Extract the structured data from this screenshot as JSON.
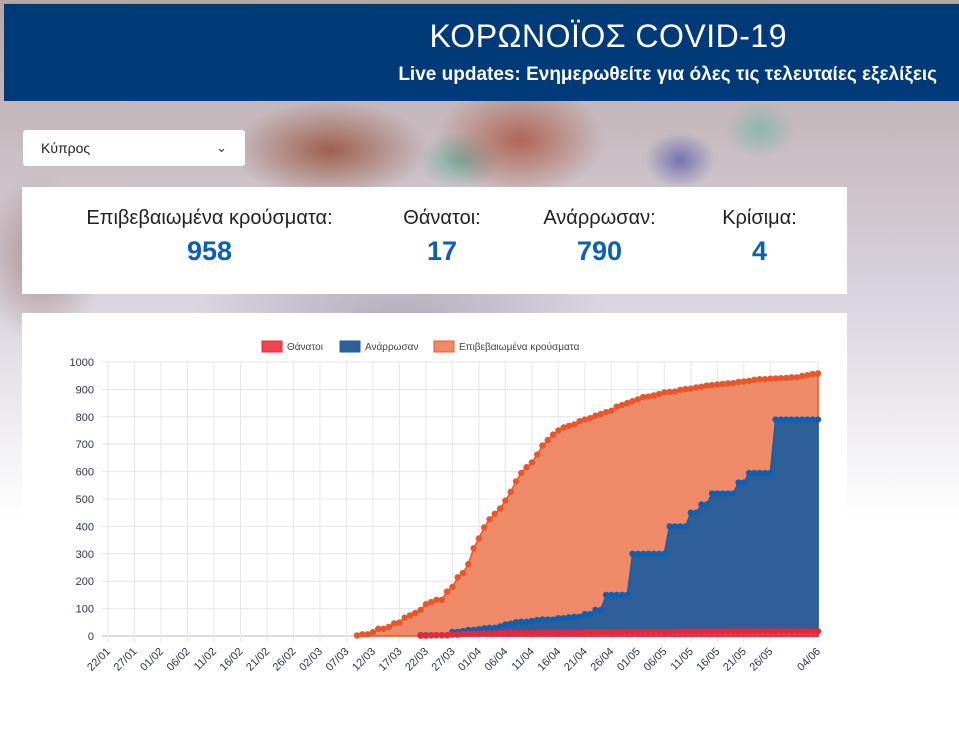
{
  "header": {
    "title": "ΚΟΡΩΝΟΪΟΣ COVID-19",
    "subtitle": "Live updates: Ενημερωθείτε για όλες τις τελευταίες εξελίξεις"
  },
  "country_select": {
    "value": "Κύπρος"
  },
  "stats": [
    {
      "label": "Επιβεβαιωμένα κρούσματα:",
      "value": "958"
    },
    {
      "label": "Θάνατοι:",
      "value": "17"
    },
    {
      "label": "Ανάρρωσαν:",
      "value": "790"
    },
    {
      "label": "Κρίσιμα:",
      "value": "4"
    }
  ],
  "chart_data": {
    "type": "area",
    "x_start": "22/01",
    "x_end": "04/06",
    "num_days": 135,
    "x_tick_labels": [
      "22/01",
      "27/01",
      "01/02",
      "06/02",
      "11/02",
      "16/02",
      "21/02",
      "26/02",
      "02/03",
      "07/03",
      "12/03",
      "17/03",
      "22/03",
      "27/03",
      "01/04",
      "06/04",
      "11/04",
      "16/04",
      "21/04",
      "26/04",
      "01/05",
      "06/05",
      "11/05",
      "16/05",
      "21/05",
      "26/05",
      "04/06"
    ],
    "x_tick_days": [
      0,
      5,
      10,
      15,
      20,
      25,
      30,
      35,
      40,
      45,
      50,
      55,
      60,
      65,
      70,
      75,
      80,
      85,
      90,
      95,
      100,
      105,
      110,
      115,
      120,
      125,
      134
    ],
    "y_ticks": [
      0,
      100,
      200,
      300,
      400,
      500,
      600,
      700,
      800,
      900,
      1000
    ],
    "ylim": [
      0,
      1000
    ],
    "grid": true,
    "legend_position": "top",
    "series": [
      {
        "name": "Θάνατοι",
        "color": "#e8283a",
        "fill": "#ef4452",
        "start_day": 59,
        "values": [
          1,
          1,
          2,
          3,
          3,
          3,
          5,
          5,
          7,
          9,
          9,
          9,
          10,
          10,
          10,
          11,
          11,
          11,
          11,
          11,
          11,
          11,
          11,
          12,
          12,
          12,
          12,
          12,
          12,
          12,
          12,
          14,
          14,
          14,
          14,
          14,
          14,
          14,
          14,
          15,
          15,
          15,
          15,
          15,
          15,
          15,
          15,
          15,
          15,
          16,
          16,
          16,
          16,
          16,
          16,
          16,
          16,
          16,
          17,
          17,
          17,
          17,
          17,
          17,
          17,
          17,
          17,
          17,
          17,
          17,
          17,
          17,
          17,
          17,
          17,
          17
        ]
      },
      {
        "name": "Ανάρρωσαν",
        "color": "#1060b0",
        "fill": "#2f5f99",
        "start_day": 59,
        "values": [
          3,
          3,
          3,
          3,
          3,
          3,
          15,
          15,
          18,
          22,
          22,
          25,
          28,
          30,
          30,
          35,
          42,
          45,
          50,
          52,
          52,
          55,
          58,
          60,
          60,
          60,
          65,
          65,
          68,
          70,
          70,
          80,
          80,
          95,
          95,
          150,
          150,
          150,
          150,
          150,
          300,
          300,
          300,
          300,
          300,
          300,
          300,
          400,
          400,
          400,
          400,
          450,
          450,
          480,
          480,
          520,
          520,
          520,
          520,
          520,
          560,
          560,
          595,
          595,
          595,
          595,
          595,
          790,
          790,
          790,
          790,
          790,
          790,
          790,
          790,
          790
        ]
      },
      {
        "name": "Επιβεβαιωμένα κρούσματα",
        "color": "#e8562a",
        "fill": "#ef8a68",
        "start_day": 47,
        "values": [
          2,
          6,
          6,
          14,
          26,
          26,
          33,
          46,
          49,
          67,
          75,
          84,
          95,
          116,
          124,
          132,
          132,
          162,
          179,
          214,
          230,
          262,
          320,
          356,
          396,
          426,
          446,
          465,
          494,
          526,
          564,
          595,
          616,
          633,
          662,
          695,
          715,
          735,
          750,
          761,
          767,
          772,
          784,
          790,
          795,
          804,
          810,
          817,
          822,
          837,
          843,
          850,
          857,
          864,
          872,
          874,
          878,
          883,
          889,
          891,
          892,
          898,
          901,
          903,
          907,
          910,
          914,
          916,
          918,
          920,
          922,
          923,
          927,
          929,
          931,
          935,
          937,
          937,
          939,
          940,
          941,
          942,
          944,
          944,
          949,
          952,
          956,
          958
        ]
      }
    ]
  }
}
